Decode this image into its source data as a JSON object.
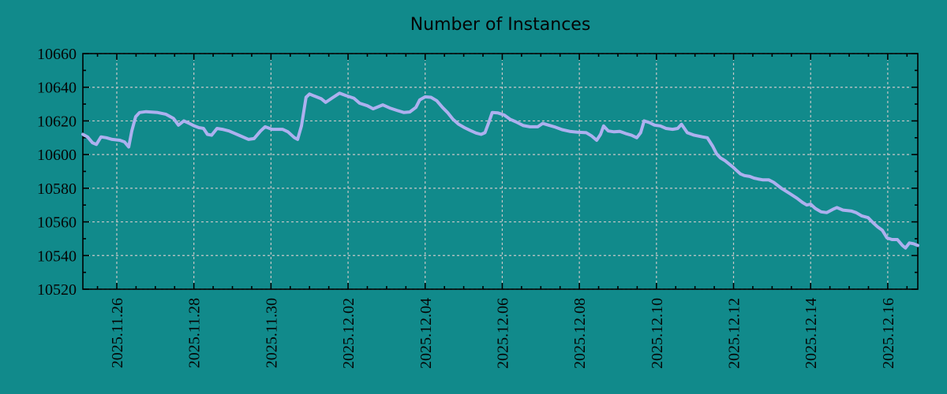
{
  "colors": {
    "background": "#118a8b",
    "line": "#adb0ef",
    "grid": "#c7c7c7",
    "frame": "#000000",
    "text": "#050505"
  },
  "chart_data": {
    "type": "line",
    "title": "Number of Instances",
    "xlabel": "",
    "ylabel": "",
    "grid": true,
    "legend": "none",
    "ylim": [
      10520,
      10660
    ],
    "y_ticks": [
      10520,
      10540,
      10560,
      10580,
      10600,
      10620,
      10640,
      10660
    ],
    "y_minor_step": 10,
    "x_range_days": [
      -0.88,
      20.78
    ],
    "x_tick_days": [
      0,
      2,
      4,
      6,
      8,
      10,
      12,
      14,
      16,
      18,
      20
    ],
    "x_tick_labels": [
      "2025.11.26",
      "2025.11.28",
      "2025.11.30",
      "2025.12.02",
      "2025.12.04",
      "2025.12.06",
      "2025.12.08",
      "2025.12.10",
      "2025.12.12",
      "2025.12.14",
      "2025.12.16"
    ],
    "x_minor_step_days": 0.5,
    "series": [
      {
        "name": "instances",
        "color": "#adb0ef",
        "points": [
          [
            -0.88,
            10612
          ],
          [
            -0.76,
            10610.5
          ],
          [
            -0.63,
            10607
          ],
          [
            -0.53,
            10606
          ],
          [
            -0.41,
            10610.5
          ],
          [
            -0.27,
            10610
          ],
          [
            -0.12,
            10609
          ],
          [
            0.08,
            10608.5
          ],
          [
            0.2,
            10607.5
          ],
          [
            0.31,
            10604.5
          ],
          [
            0.39,
            10614
          ],
          [
            0.49,
            10622.5
          ],
          [
            0.59,
            10625
          ],
          [
            0.76,
            10625.5
          ],
          [
            1.06,
            10625
          ],
          [
            1.27,
            10624
          ],
          [
            1.47,
            10621.5
          ],
          [
            1.6,
            10617.5
          ],
          [
            1.74,
            10620
          ],
          [
            1.88,
            10618.5
          ],
          [
            2.01,
            10617
          ],
          [
            2.13,
            10616
          ],
          [
            2.25,
            10615.5
          ],
          [
            2.35,
            10612
          ],
          [
            2.46,
            10611.5
          ],
          [
            2.6,
            10615.5
          ],
          [
            2.74,
            10615
          ],
          [
            2.91,
            10614
          ],
          [
            3.17,
            10611.5
          ],
          [
            3.42,
            10609
          ],
          [
            3.56,
            10609.5
          ],
          [
            3.73,
            10614
          ],
          [
            3.85,
            10616.5
          ],
          [
            4.03,
            10615
          ],
          [
            4.3,
            10615
          ],
          [
            4.44,
            10613.5
          ],
          [
            4.61,
            10610
          ],
          [
            4.69,
            10609
          ],
          [
            4.79,
            10617
          ],
          [
            4.91,
            10634
          ],
          [
            5.0,
            10636
          ],
          [
            5.12,
            10634.8
          ],
          [
            5.3,
            10633.2
          ],
          [
            5.42,
            10631
          ],
          [
            5.58,
            10633.5
          ],
          [
            5.78,
            10636.5
          ],
          [
            5.95,
            10635
          ],
          [
            6.15,
            10633.5
          ],
          [
            6.3,
            10630.5
          ],
          [
            6.5,
            10629
          ],
          [
            6.65,
            10627.2
          ],
          [
            6.9,
            10629.5
          ],
          [
            7.1,
            10627.5
          ],
          [
            7.3,
            10626
          ],
          [
            7.45,
            10625
          ],
          [
            7.6,
            10625.3
          ],
          [
            7.76,
            10628
          ],
          [
            7.86,
            10632.5
          ],
          [
            8.0,
            10634.3
          ],
          [
            8.15,
            10634
          ],
          [
            8.3,
            10632
          ],
          [
            8.45,
            10628
          ],
          [
            8.58,
            10625
          ],
          [
            8.72,
            10621
          ],
          [
            8.87,
            10618
          ],
          [
            9.02,
            10616
          ],
          [
            9.17,
            10614.3
          ],
          [
            9.32,
            10612.8
          ],
          [
            9.45,
            10612
          ],
          [
            9.55,
            10613
          ],
          [
            9.65,
            10619
          ],
          [
            9.74,
            10625
          ],
          [
            9.88,
            10624.8
          ],
          [
            10.05,
            10623.5
          ],
          [
            10.2,
            10621
          ],
          [
            10.35,
            10619.5
          ],
          [
            10.55,
            10617.2
          ],
          [
            10.72,
            10616.5
          ],
          [
            10.92,
            10616.5
          ],
          [
            11.05,
            10618.5
          ],
          [
            11.2,
            10617.5
          ],
          [
            11.35,
            10616.5
          ],
          [
            11.55,
            10614.8
          ],
          [
            11.75,
            10613.8
          ],
          [
            11.95,
            10613.3
          ],
          [
            12.18,
            10613
          ],
          [
            12.32,
            10611
          ],
          [
            12.45,
            10608.5
          ],
          [
            12.55,
            10612
          ],
          [
            12.63,
            10617
          ],
          [
            12.75,
            10614
          ],
          [
            12.9,
            10613.5
          ],
          [
            13.05,
            10613.8
          ],
          [
            13.2,
            10612.5
          ],
          [
            13.35,
            10611.5
          ],
          [
            13.49,
            10610
          ],
          [
            13.59,
            10613
          ],
          [
            13.68,
            10620
          ],
          [
            13.82,
            10619
          ],
          [
            13.95,
            10617.5
          ],
          [
            14.1,
            10617
          ],
          [
            14.25,
            10615.5
          ],
          [
            14.42,
            10615
          ],
          [
            14.55,
            10615.5
          ],
          [
            14.65,
            10618
          ],
          [
            14.8,
            10613
          ],
          [
            14.98,
            10611.5
          ],
          [
            15.19,
            10610.5
          ],
          [
            15.32,
            10610
          ],
          [
            15.46,
            10605
          ],
          [
            15.56,
            10600.5
          ],
          [
            15.66,
            10598
          ],
          [
            15.77,
            10596.5
          ],
          [
            15.88,
            10594.5
          ],
          [
            15.99,
            10592.5
          ],
          [
            16.08,
            10590.5
          ],
          [
            16.18,
            10588.5
          ],
          [
            16.28,
            10587.5
          ],
          [
            16.42,
            10587
          ],
          [
            16.53,
            10586
          ],
          [
            16.63,
            10585.5
          ],
          [
            16.75,
            10585
          ],
          [
            16.91,
            10585
          ],
          [
            17.04,
            10583.5
          ],
          [
            17.24,
            10580
          ],
          [
            17.45,
            10577
          ],
          [
            17.65,
            10574
          ],
          [
            17.79,
            10571.5
          ],
          [
            17.9,
            10570
          ],
          [
            18.0,
            10570.5
          ],
          [
            18.12,
            10568
          ],
          [
            18.27,
            10566
          ],
          [
            18.42,
            10565.5
          ],
          [
            18.58,
            10567.5
          ],
          [
            18.68,
            10568.5
          ],
          [
            18.84,
            10567
          ],
          [
            19.05,
            10566.5
          ],
          [
            19.18,
            10565.5
          ],
          [
            19.33,
            10563.5
          ],
          [
            19.49,
            10562.5
          ],
          [
            19.62,
            10559.5
          ],
          [
            19.74,
            10557
          ],
          [
            19.86,
            10555
          ],
          [
            19.98,
            10550.5
          ],
          [
            20.11,
            10549.5
          ],
          [
            20.25,
            10549.5
          ],
          [
            20.38,
            10546
          ],
          [
            20.46,
            10544.5
          ],
          [
            20.56,
            10547.5
          ],
          [
            20.67,
            10547
          ],
          [
            20.78,
            10546
          ]
        ]
      }
    ]
  }
}
